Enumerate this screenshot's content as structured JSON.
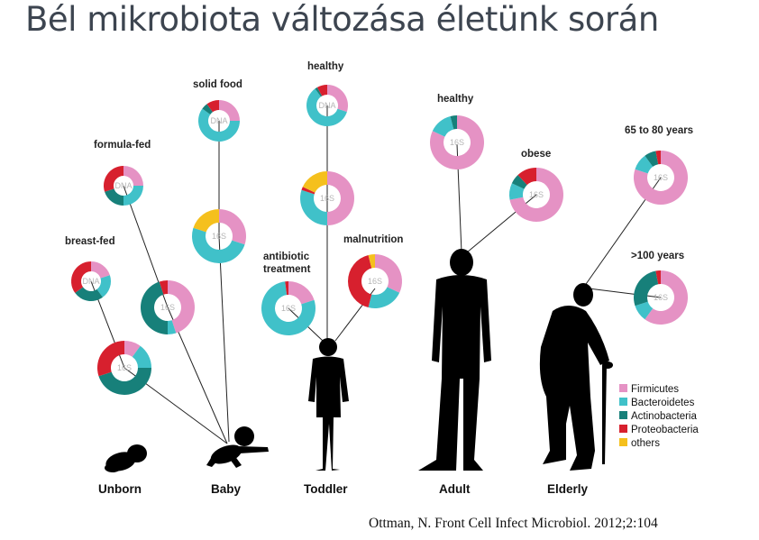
{
  "title": "Bél mikrobiota változása életünk során",
  "citation": "Ottman, N. Front Cell Infect Microbiol. 2012;2:104",
  "colors": {
    "Firmicutes": "#e592c4",
    "Bacteroidetes": "#40c1c9",
    "Actinobacteria": "#17807a",
    "Proteobacteria": "#d7202e",
    "others": "#f5c01d"
  },
  "legend": [
    "Firmicutes",
    "Bacteroidetes",
    "Actinobacteria",
    "Proteobacteria",
    "others"
  ],
  "stages": [
    "Unborn",
    "Baby",
    "Toddler",
    "Adult",
    "Elderly"
  ],
  "labels": {
    "breast_fed": "breast-fed",
    "formula_fed": "formula-fed",
    "solid_food": "solid food",
    "healthy_toddler": "healthy",
    "antibiotic_1": "antibiotic",
    "antibiotic_2": "treatment",
    "malnutrition": "malnutrition",
    "healthy_adult": "healthy",
    "obese": "obese",
    "age_65_80": "65 to 80 years",
    "age_100": ">100 years"
  },
  "method_labels": {
    "dna": "DNA",
    "rrna": "16S"
  },
  "chart_data": {
    "type": "pie",
    "variant": "donut",
    "categories": [
      "Firmicutes",
      "Bacteroidetes",
      "Actinobacteria",
      "Proteobacteria",
      "others"
    ],
    "donuts": [
      {
        "id": "breastfed-dna",
        "group": "breast-fed",
        "method": "DNA",
        "values": [
          20,
          20,
          25,
          35,
          0
        ]
      },
      {
        "id": "breastfed-16s",
        "group": "breast-fed",
        "method": "16S",
        "values": [
          10,
          15,
          45,
          30,
          0
        ]
      },
      {
        "id": "formulafed-dna",
        "group": "formula-fed",
        "method": "DNA",
        "values": [
          25,
          25,
          20,
          30,
          0
        ]
      },
      {
        "id": "formulafed-16s",
        "group": "formula-fed",
        "method": "16S",
        "values": [
          45,
          5,
          45,
          5,
          0
        ]
      },
      {
        "id": "solidfood-dna",
        "group": "solid food",
        "method": "DNA",
        "values": [
          25,
          60,
          5,
          10,
          0
        ]
      },
      {
        "id": "solidfood-16s",
        "group": "solid food",
        "method": "16S",
        "values": [
          30,
          50,
          0,
          0,
          20
        ]
      },
      {
        "id": "healthy-toddler-dna",
        "group": "healthy",
        "method": "DNA",
        "values": [
          30,
          60,
          2,
          8,
          0
        ]
      },
      {
        "id": "healthy-toddler-16s",
        "group": "healthy",
        "method": "16S",
        "values": [
          50,
          30,
          0,
          2,
          18
        ]
      },
      {
        "id": "antibiotic-16s",
        "group": "antibiotic treatment",
        "method": "16S",
        "values": [
          20,
          78,
          0,
          2,
          0
        ]
      },
      {
        "id": "malnutrition-16s",
        "group": "malnutrition",
        "method": "16S",
        "values": [
          32,
          22,
          0,
          42,
          4
        ]
      },
      {
        "id": "healthy-adult-16s",
        "group": "healthy",
        "method": "16S",
        "values": [
          82,
          14,
          4,
          0,
          0
        ]
      },
      {
        "id": "obese-16s",
        "group": "obese",
        "method": "16S",
        "values": [
          72,
          10,
          6,
          12,
          0
        ]
      },
      {
        "id": "age65-16s",
        "group": "65 to 80 years",
        "method": "16S",
        "values": [
          80,
          10,
          7,
          3,
          0
        ]
      },
      {
        "id": "age100-16s",
        "group": ">100 years",
        "method": "16S",
        "values": [
          60,
          10,
          27,
          3,
          0
        ]
      }
    ]
  }
}
